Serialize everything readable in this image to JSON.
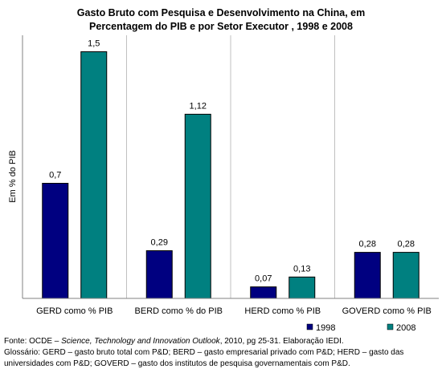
{
  "chart_data": {
    "type": "bar",
    "title_line1": "Gasto Bruto com Pesquisa e Desenvolvimento na China, em",
    "title_line2": "Percentagem do PIB e por Setor Executor , 1998 e 2008",
    "ylabel": "Em % do PIB",
    "xlabel": "",
    "ylim": [
      0,
      1.6
    ],
    "grid": false,
    "legend_position": "bottom-right",
    "categories": [
      "GERD como % PIB",
      "BERD como % do PIB",
      "HERD como % PIB",
      "GOVERD como % PIB"
    ],
    "series": [
      {
        "name": "1998",
        "values": [
          0.7,
          0.29,
          0.07,
          0.28
        ],
        "labels": [
          "0,7",
          "0,29",
          "0,07",
          "0,28"
        ],
        "color": "#000080"
      },
      {
        "name": "2008",
        "values": [
          1.5,
          1.12,
          0.13,
          0.28
        ],
        "labels": [
          "1,5",
          "1,12",
          "0,13",
          "0,28"
        ],
        "color": "#008080"
      }
    ]
  },
  "footer": {
    "source_prefix": "Fonte: OCDE – ",
    "source_italic": "Science, Technology and Innovation Outlook",
    "source_suffix": ", 2010, pg 25-31. Elaboração IEDI.",
    "glossary_line1": "Glossário: GERD – gasto bruto total com P&D; BERD – gasto empresarial privado com P&D; HERD – gasto das",
    "glossary_line2": "universidades com P&D; GOVERD – gasto dos institutos de pesquisa governamentais com P&D."
  }
}
